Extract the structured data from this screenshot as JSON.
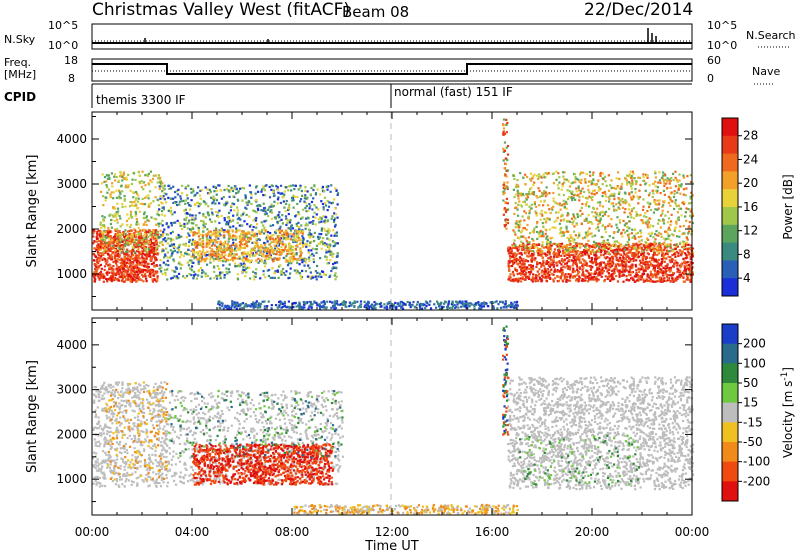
{
  "header": {
    "title": "Christmas Valley West (fitACF)",
    "beam": "Beam 08",
    "date": "22/Dec/2014"
  },
  "panels": {
    "nsky_label": "N.Sky",
    "nsky_ticks": [
      "10^5",
      "10^0"
    ],
    "nsearch_label": "N.Search",
    "nsearch_ticks": [
      "10^5",
      "10^0"
    ],
    "freq_label": "Freq.",
    "freq_unit": "[MHz]",
    "freq_ticks": [
      "18",
      "8"
    ],
    "nave_label": "Nave",
    "nave_ticks": [
      "60",
      "0"
    ],
    "cpid_label": "CPID",
    "cpid_segments": [
      "themis 3300 IF",
      "normal (fast) 151 IF"
    ]
  },
  "chart_data": [
    {
      "type": "heatmap",
      "title": "",
      "xlabel": "Time UT",
      "ylabel": "Slant Range [km]",
      "x_ticks": [
        "00:00",
        "04:00",
        "08:00",
        "12:00",
        "16:00",
        "20:00",
        "00:00"
      ],
      "y_ticks": [
        1000,
        2000,
        3000,
        4000
      ],
      "ylim": [
        200,
        4600
      ],
      "colorbar": {
        "label": "Power [dB]",
        "ticks": [
          4,
          8,
          12,
          16,
          20,
          24,
          28
        ],
        "colors": [
          "#1a2fd8",
          "#2a5fb8",
          "#3a8a80",
          "#5ca55c",
          "#9fc84a",
          "#e8d23a",
          "#f2a02a",
          "#ef6a1e",
          "#e83a18",
          "#e01010"
        ]
      },
      "marker_line_x": "12:00"
    },
    {
      "type": "heatmap",
      "title": "",
      "xlabel": "Time UT",
      "ylabel": "Slant Range [km]",
      "x_ticks": [
        "00:00",
        "04:00",
        "08:00",
        "12:00",
        "16:00",
        "20:00",
        "00:00"
      ],
      "y_ticks": [
        1000,
        2000,
        3000,
        4000
      ],
      "ylim": [
        200,
        4600
      ],
      "colorbar": {
        "label": "Velocity [m s",
        "label_sup": "-1",
        "label_end": "]",
        "ticks": [
          200,
          100,
          50,
          15,
          -15,
          -50,
          -100,
          -200
        ],
        "colors": [
          "#1a3ec8",
          "#2a6a8a",
          "#2e8a3a",
          "#6ec840",
          "#bdbdbd",
          "#f0c020",
          "#f08a18",
          "#f04a10",
          "#e01010"
        ]
      },
      "marker_line_x": "12:00"
    }
  ]
}
